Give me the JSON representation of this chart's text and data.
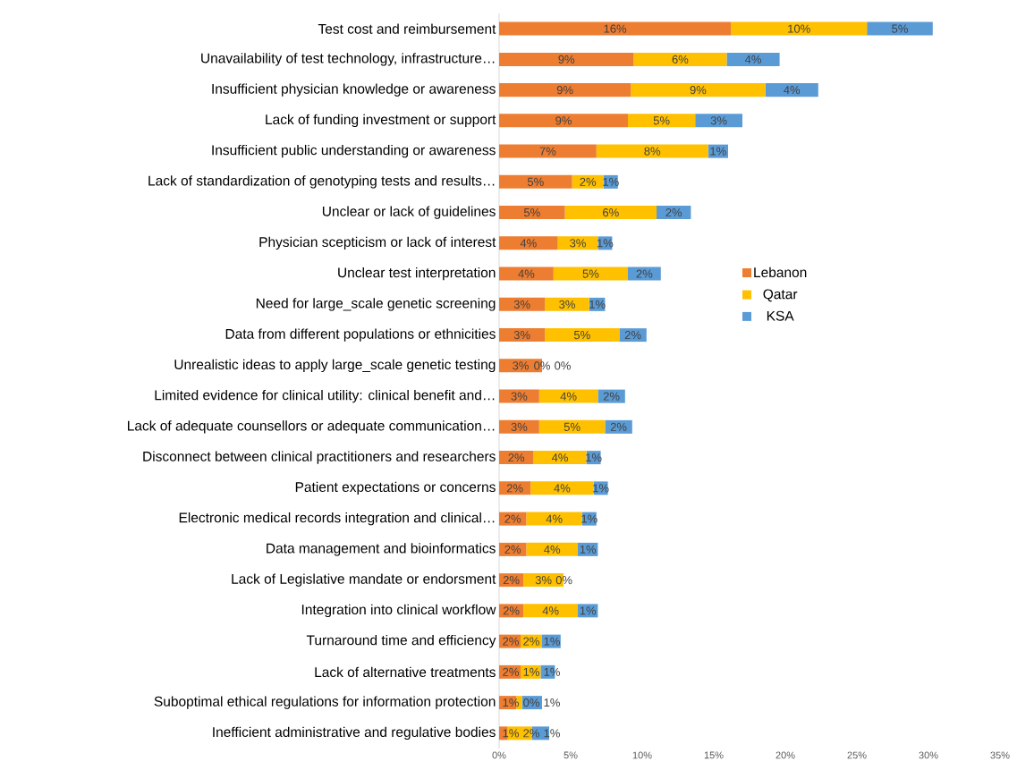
{
  "chart_data": {
    "type": "bar",
    "orientation": "horizontal",
    "stacked": true,
    "legend": "right",
    "grid": false,
    "categories": [
      "Test cost and reimbursement",
      "Unavailability of test technology, infrastructure…",
      "Insufficient physician knowledge or awareness",
      "Lack of funding  investment or support",
      "Insufficient public understanding or awareness",
      "Lack of standardization of genotyping tests and results…",
      "Unclear or lack of guidelines",
      "Physician scepticism or lack of interest",
      "Unclear test interpretation",
      "Need for large_scale genetic screening",
      "Data from different populations or ethnicities",
      "Unrealistic ideas to apply large_scale genetic testing",
      "Limited evidence for clinical utility: clinical benefit and…",
      "Lack of adequate counsellors or adequate communication…",
      "Disconnect between clinical practitioners and researchers",
      "Patient expectations or concerns",
      "Electronic medical records integration and clinical…",
      "Data management and bioinformatics",
      "Lack of Legislative mandate or endorsment",
      "Integration into clinical workflow",
      "Turnaround time and efficiency",
      "Lack of alternative treatments",
      "Suboptimal ethical regulations for information protection",
      "Inefficient administrative and regulative bodies"
    ],
    "series": [
      {
        "name": "Lebanon",
        "color": "#ed7d31",
        "values": [
          16.2,
          9.4,
          9.2,
          9.0,
          6.8,
          5.1,
          4.6,
          4.1,
          3.8,
          3.2,
          3.2,
          3.0,
          2.8,
          2.8,
          2.4,
          2.2,
          1.9,
          1.9,
          1.7,
          1.7,
          1.5,
          1.5,
          1.2,
          0.6
        ],
        "value_labels": [
          "16%",
          "9%",
          "9%",
          "9%",
          "7%",
          "5%",
          "5%",
          "4%",
          "4%",
          "3%",
          "3%",
          "3%",
          "3%",
          "3%",
          "2%",
          "2%",
          "2%",
          "2%",
          "2%",
          "2%",
          "2%",
          "2%",
          "1%",
          "1%"
        ]
      },
      {
        "name": "Qatar",
        "color": "#ffc000",
        "values": [
          9.5,
          6.5,
          9.4,
          4.7,
          7.8,
          2.2,
          6.4,
          2.8,
          5.2,
          3.1,
          5.2,
          0,
          4.1,
          4.6,
          3.7,
          4.4,
          3.9,
          3.6,
          2.8,
          3.8,
          1.5,
          1.4,
          0.4,
          1.7
        ],
        "value_labels": [
          "10%",
          "6%",
          "9%",
          "5%",
          "8%",
          "2%",
          "6%",
          "3%",
          "5%",
          "3%",
          "5%",
          "0%",
          "4%",
          "5%",
          "4%",
          "4%",
          "4%",
          "4%",
          "3%",
          "4%",
          "2%",
          "1%",
          "0%",
          "2%"
        ]
      },
      {
        "name": "KSA",
        "color": "#5b9bd5",
        "values": [
          4.6,
          3.7,
          3.7,
          3.3,
          1.4,
          1.0,
          2.4,
          1.0,
          2.3,
          1.1,
          1.9,
          0,
          1.9,
          1.9,
          1.0,
          1.0,
          1.0,
          1.4,
          0,
          1.4,
          1.3,
          1.0,
          1.4,
          1.2
        ],
        "value_labels": [
          "5%",
          "4%",
          "4%",
          "3%",
          "1%",
          "1%",
          "2%",
          "1%",
          "2%",
          "1%",
          "2%",
          "0%",
          "2%",
          "2%",
          "1%",
          "1%",
          "1%",
          "1%",
          "0%",
          "1%",
          "1%",
          "1%",
          "1%",
          "1%"
        ]
      }
    ],
    "xlim": [
      0,
      35
    ],
    "xticks": [
      {
        "value": 0,
        "label": "0%"
      },
      {
        "value": 5,
        "label": "5%"
      },
      {
        "value": 10,
        "label": "10%"
      },
      {
        "value": 15,
        "label": "15%"
      },
      {
        "value": 20,
        "label": "20%"
      },
      {
        "value": 25,
        "label": "25%"
      },
      {
        "value": 30,
        "label": "30%"
      },
      {
        "value": 35,
        "label": "35%"
      }
    ]
  }
}
